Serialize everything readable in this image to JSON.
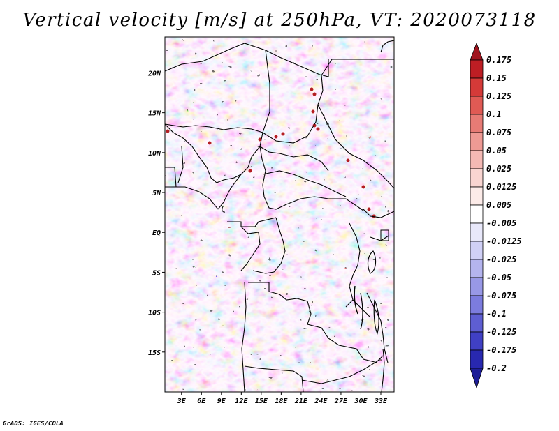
{
  "title": "Vertical velocity [m/s] at 250hPa, VT: 2020073118",
  "footer": "GrADS: IGES/COLA",
  "map": {
    "lat_labels": [
      "20N",
      "15N",
      "10N",
      "5N",
      "EQ",
      "5S",
      "10S",
      "15S"
    ],
    "lat_values": [
      20,
      15,
      10,
      5,
      0,
      -5,
      -10,
      -15
    ],
    "lon_labels": [
      "3E",
      "6E",
      "9E",
      "12E",
      "15E",
      "18E",
      "21E",
      "24E",
      "27E",
      "30E",
      "33E"
    ],
    "lon_values": [
      3,
      6,
      9,
      12,
      15,
      18,
      21,
      24,
      27,
      30,
      33
    ],
    "lon_range": [
      0.5,
      35
    ],
    "lat_range": [
      -20,
      24.5
    ]
  },
  "colorbar": {
    "labels": [
      "0.175",
      "0.15",
      "0.125",
      "0.1",
      "0.075",
      "0.05",
      "0.025",
      "0.0125",
      "0.005",
      "-0.005",
      "-0.0125",
      "-0.025",
      "-0.05",
      "-0.075",
      "-0.1",
      "-0.125",
      "-0.175",
      "-0.2"
    ],
    "colors": [
      "#a0141e",
      "#be1e24",
      "#d53a38",
      "#e05a54",
      "#e77b75",
      "#ee9a94",
      "#f4b9b4",
      "#f9d5d1",
      "#fcebe8",
      "#ffffff",
      "#e8e8fa",
      "#d0d0f6",
      "#b4b4ee",
      "#9898e6",
      "#7c7cde",
      "#5e5ed2",
      "#4040c4",
      "#2828b0",
      "#1e1e96"
    ]
  }
}
